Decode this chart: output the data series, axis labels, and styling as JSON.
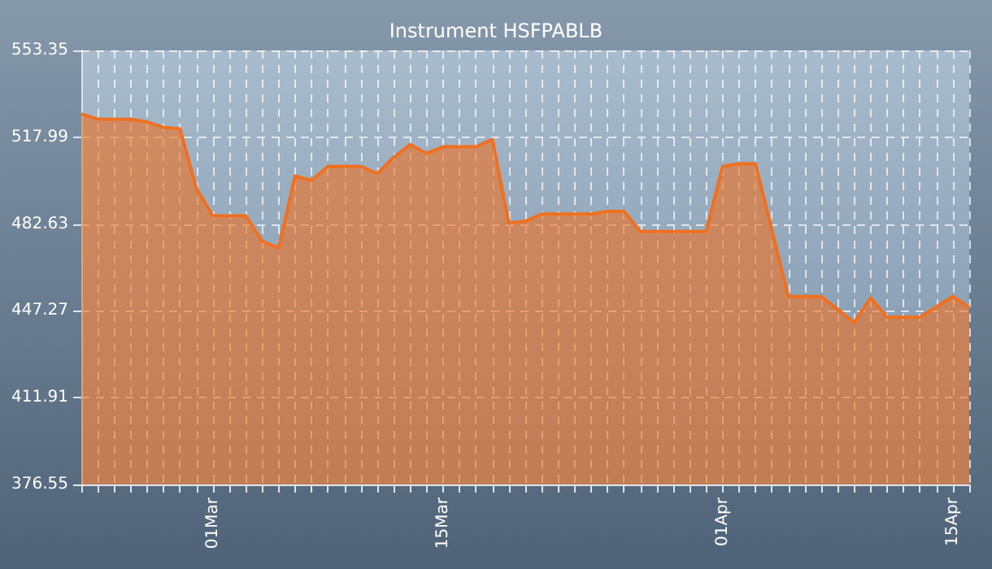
{
  "chart_data": {
    "type": "area",
    "title": "Instrument HSFPABLB",
    "x": [
      "--02-21",
      "--02-22",
      "--02-24",
      "--02-25",
      "--02-26",
      "--02-27",
      "--02-28",
      "--03-01",
      "--03-03",
      "--03-04",
      "--03-05",
      "--03-06",
      "--03-07",
      "--03-08",
      "--03-10",
      "--03-11",
      "--03-12",
      "--03-13",
      "--03-14",
      "--03-15",
      "--03-17",
      "--03-18",
      "--03-19",
      "--03-20",
      "--03-21",
      "--03-24",
      "--03-25",
      "--03-26",
      "--03-27",
      "--03-31",
      "--04-01",
      "--04-02",
      "--04-03",
      "--04-05",
      "--04-07",
      "--04-09",
      "--04-10",
      "--04-11",
      "--04-13",
      "--04-15",
      "--04-16"
    ],
    "series": [
      {
        "color": "#f07020",
        "values": [
          527.5,
          525.3,
          525.3,
          524.2,
          522.0,
          521.4,
          497.1,
          486.0,
          486.0,
          475.6,
          472.8,
          502.2,
          500.4,
          506.1,
          506.1,
          503.2,
          509.8,
          515.0,
          511.4,
          514.1,
          514.1,
          517.1,
          483.0,
          483.8,
          486.7,
          486.7,
          487.8,
          487.8,
          479.6,
          479.6,
          506.1,
          507.2,
          507.2,
          453.1,
          453.1,
          442.6,
          452.5,
          444.7,
          444.7,
          453.1,
          448.7
        ]
      }
    ],
    "xlim": [
      "--02-21",
      "--04-16"
    ],
    "xticks": [
      {
        "value": "--03-01",
        "label": "01Mar"
      },
      {
        "value": "--03-15",
        "label": "15Mar"
      },
      {
        "value": "--04-01",
        "label": "01Apr"
      },
      {
        "value": "--04-15",
        "label": "15Apr"
      }
    ],
    "ylim": [
      376.55,
      553.35
    ],
    "yticks": [
      376.55,
      411.91,
      447.27,
      482.63,
      517.99,
      553.35
    ],
    "grid": true,
    "marker": "none",
    "line_style": "solid"
  }
}
